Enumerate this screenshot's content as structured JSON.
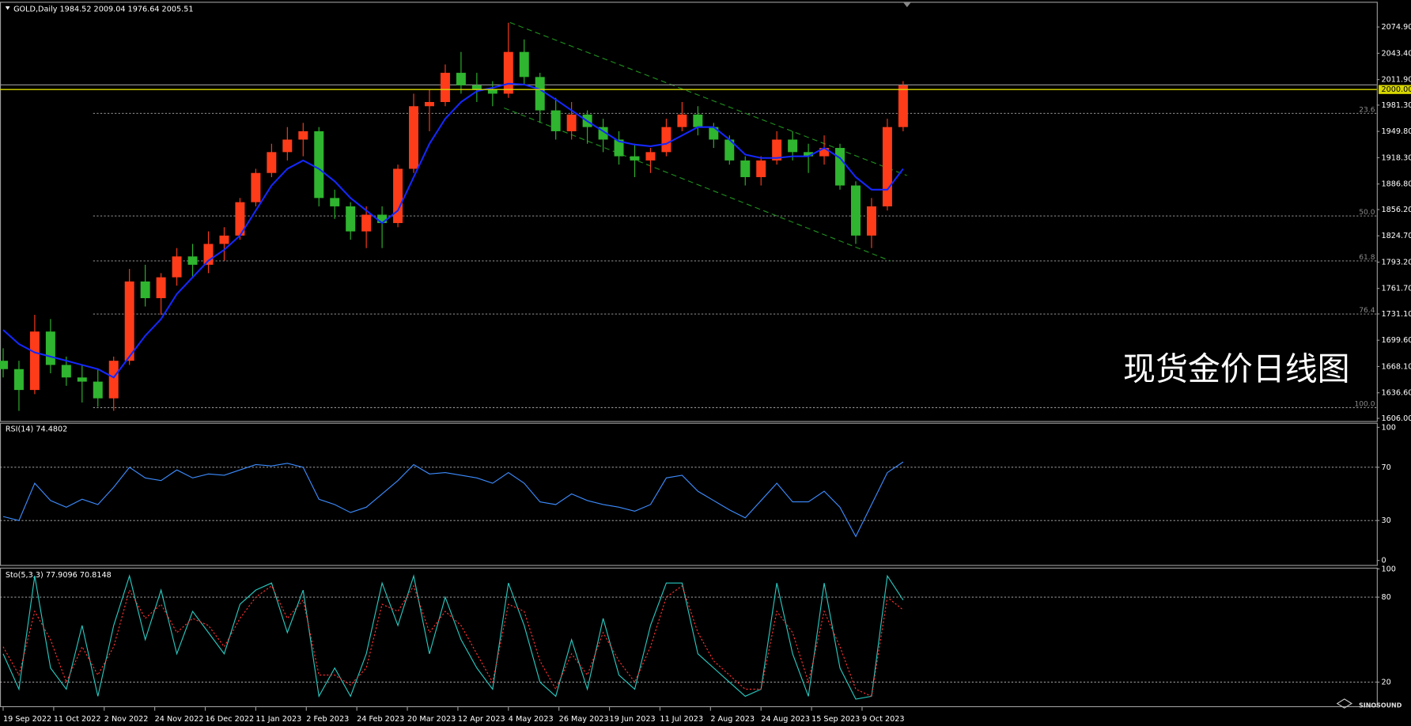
{
  "header": "GOLD,Daily  1984.52 2009.04 1976.64 2005.51",
  "watermark": "现货金价日线图",
  "logo": "SINOSOUND",
  "chart_data": [
    {
      "type": "candlestick",
      "x": [
        1,
        6,
        11,
        16,
        21,
        26,
        31,
        36,
        41,
        46,
        51,
        56,
        61,
        66,
        71,
        76,
        81,
        86,
        91,
        96,
        101,
        106,
        111,
        116,
        121,
        126,
        131,
        136,
        141,
        146,
        151,
        156,
        161,
        166,
        171,
        176,
        181,
        186,
        191,
        196,
        201,
        206,
        211,
        216,
        221,
        226,
        231,
        236,
        241,
        246,
        251,
        256,
        261,
        266,
        271,
        276,
        281,
        286
      ],
      "open": [
        1675,
        1665,
        1640,
        1710,
        1670,
        1655,
        1650,
        1630,
        1675,
        1770,
        1750,
        1775,
        1800,
        1790,
        1815,
        1825,
        1865,
        1900,
        1925,
        1940,
        1950,
        1870,
        1860,
        1830,
        1850,
        1840,
        1905,
        1980,
        1985,
        2020,
        2005,
        2000,
        1995,
        2045,
        2015,
        1975,
        1950,
        1970,
        1955,
        1940,
        1920,
        1915,
        1925,
        1955,
        1970,
        1955,
        1940,
        1915,
        1895,
        1915,
        1940,
        1925,
        1920,
        1930,
        1885,
        1825,
        1860,
        1955
      ],
      "high": [
        1690,
        1675,
        1730,
        1725,
        1680,
        1670,
        1665,
        1680,
        1785,
        1790,
        1780,
        1810,
        1815,
        1830,
        1835,
        1870,
        1905,
        1935,
        1955,
        1960,
        1955,
        1880,
        1865,
        1860,
        1860,
        1910,
        1995,
        2000,
        2030,
        2045,
        2020,
        2010,
        2080,
        2060,
        2020,
        1990,
        1985,
        1975,
        1965,
        1950,
        1935,
        1930,
        1965,
        1985,
        1980,
        1960,
        1945,
        1920,
        1920,
        1950,
        1950,
        1935,
        1945,
        1935,
        1890,
        1870,
        1965,
        2010
      ],
      "low": [
        1655,
        1615,
        1635,
        1660,
        1645,
        1625,
        1620,
        1615,
        1670,
        1740,
        1730,
        1765,
        1775,
        1780,
        1795,
        1820,
        1860,
        1895,
        1915,
        1920,
        1860,
        1845,
        1820,
        1810,
        1810,
        1835,
        1900,
        1950,
        1980,
        1995,
        1985,
        1980,
        1990,
        2005,
        1960,
        1940,
        1940,
        1935,
        1925,
        1910,
        1895,
        1900,
        1920,
        1950,
        1945,
        1930,
        1910,
        1885,
        1885,
        1910,
        1915,
        1900,
        1910,
        1880,
        1815,
        1810,
        1855,
        1950
      ],
      "close": [
        1665,
        1640,
        1710,
        1670,
        1655,
        1650,
        1630,
        1675,
        1770,
        1750,
        1775,
        1800,
        1790,
        1815,
        1825,
        1865,
        1900,
        1925,
        1940,
        1950,
        1870,
        1860,
        1830,
        1850,
        1840,
        1905,
        1980,
        1985,
        2020,
        2005,
        2000,
        1995,
        2045,
        2015,
        1975,
        1950,
        1970,
        1955,
        1940,
        1920,
        1915,
        1925,
        1955,
        1970,
        1955,
        1940,
        1915,
        1895,
        1915,
        1940,
        1925,
        1920,
        1930,
        1885,
        1825,
        1860,
        1955,
        2005
      ],
      "up_color": "#ff3c1a",
      "down_color": "#2fb52f",
      "ma": {
        "color": "#1428ff",
        "values": [
          1712,
          1695,
          1685,
          1680,
          1675,
          1670,
          1665,
          1655,
          1680,
          1705,
          1725,
          1755,
          1775,
          1795,
          1808,
          1825,
          1855,
          1885,
          1905,
          1915,
          1905,
          1890,
          1870,
          1855,
          1840,
          1855,
          1895,
          1935,
          1965,
          1985,
          1998,
          2002,
          2007,
          2006,
          2000,
          1988,
          1975,
          1962,
          1950,
          1938,
          1934,
          1932,
          1935,
          1945,
          1955,
          1955,
          1940,
          1922,
          1918,
          1918,
          1920,
          1920,
          1930,
          1918,
          1895,
          1880,
          1880,
          1905
        ]
      },
      "levels": [
        {
          "value": 2000,
          "label": "2000.00",
          "color": "#d7d700"
        }
      ],
      "price_line": 2005.51,
      "fib_levels": [
        {
          "label": "23.6",
          "value": 1971.4
        },
        {
          "label": "50.0",
          "value": 1848.5
        },
        {
          "label": "61.8",
          "value": 1794.6
        },
        {
          "label": "76.4",
          "value": 1731.0
        },
        {
          "label": "100.0",
          "value": 1618.9
        }
      ],
      "channel": {
        "color": "#1f8f1f",
        "lines": [
          {
            "x": [
              161.5,
              287.2
            ],
            "y": [
              2080.3,
              1897.0
            ]
          },
          {
            "x": [
              159.6,
              282.0
            ],
            "y": [
              1977.9,
              1794.6
            ]
          }
        ]
      },
      "xlim": [
        0,
        436
      ],
      "ylim": [
        1602.8,
        2104.0
      ],
      "yticks": [
        {
          "value": 2074.9,
          "label": "2074.90"
        },
        {
          "value": 2043.4,
          "label": "2043.40"
        },
        {
          "value": 2011.9,
          "label": "2011.90"
        },
        {
          "value": 1981.3,
          "label": "1981.30"
        },
        {
          "value": 1949.8,
          "label": "1949.80"
        },
        {
          "value": 1918.3,
          "label": "1918.30"
        },
        {
          "value": 1886.8,
          "label": "1886.80"
        },
        {
          "value": 1856.2,
          "label": "1856.20"
        },
        {
          "value": 1824.7,
          "label": "1824.70"
        },
        {
          "value": 1793.2,
          "label": "1793.20"
        },
        {
          "value": 1761.7,
          "label": "1761.70"
        },
        {
          "value": 1731.1,
          "label": "1731.10"
        },
        {
          "value": 1699.6,
          "label": "1699.60"
        },
        {
          "value": 1668.1,
          "label": "1668.10"
        },
        {
          "value": 1636.6,
          "label": "1636.60"
        },
        {
          "value": 1606,
          "label": "1606.00"
        }
      ],
      "xticks": [
        {
          "value": 1,
          "label": "19 Sep 2022"
        },
        {
          "value": 17,
          "label": "11 Oct 2022"
        },
        {
          "value": 33,
          "label": "2 Nov 2022"
        },
        {
          "value": 49,
          "label": "24 Nov 2022"
        },
        {
          "value": 65,
          "label": "16 Dec 2022"
        },
        {
          "value": 81,
          "label": "11 Jan 2023"
        },
        {
          "value": 97,
          "label": "2 Feb 2023"
        },
        {
          "value": 113,
          "label": "24 Feb 2023"
        },
        {
          "value": 129,
          "label": "20 Mar 2023"
        },
        {
          "value": 145,
          "label": "12 Apr 2023"
        },
        {
          "value": 161,
          "label": "4 May 2023"
        },
        {
          "value": 177,
          "label": "26 May 2023"
        },
        {
          "value": 193,
          "label": "19 Jun 2023"
        },
        {
          "value": 209,
          "label": "11 Jul 2023"
        },
        {
          "value": 225,
          "label": "2 Aug 2023"
        },
        {
          "value": 241,
          "label": "24 Aug 2023"
        },
        {
          "value": 257,
          "label": "15 Sep 2023"
        },
        {
          "value": 273,
          "label": "9 Oct 2023"
        }
      ]
    },
    {
      "type": "line",
      "title": "RSI(14) 74.4802",
      "series": [
        {
          "color": "#3c8cff",
          "values": [
            33,
            30,
            58,
            45,
            40,
            46,
            42,
            55,
            70,
            62,
            60,
            68,
            62,
            65,
            64,
            68,
            72,
            71,
            73,
            70,
            46,
            42,
            36,
            40,
            50,
            60,
            72,
            65,
            66,
            64,
            62,
            58,
            66,
            58,
            44,
            42,
            50,
            45,
            42,
            40,
            37,
            42,
            62,
            64,
            52,
            45,
            38,
            32,
            45,
            58,
            44,
            44,
            52,
            40,
            18,
            42,
            66,
            74
          ]
        }
      ],
      "ylim": [
        -3.4,
        103.4
      ],
      "yticks": [
        0,
        30,
        70,
        100
      ],
      "levels": [
        30,
        70
      ]
    },
    {
      "type": "line",
      "title": "Sto(5,3,3) 77.9096 70.8148",
      "series": [
        {
          "color": "#28c8c0",
          "values": [
            40,
            15,
            95,
            30,
            15,
            60,
            10,
            60,
            95,
            50,
            85,
            40,
            70,
            55,
            40,
            75,
            85,
            90,
            55,
            85,
            10,
            30,
            10,
            40,
            90,
            60,
            95,
            40,
            80,
            50,
            30,
            15,
            90,
            60,
            20,
            10,
            50,
            15,
            65,
            25,
            15,
            60,
            90,
            90,
            40,
            30,
            20,
            10,
            15,
            90,
            40,
            10,
            90,
            30,
            8,
            10,
            95,
            78
          ]
        },
        {
          "color": "#ff3030",
          "dash": true,
          "values": [
            45,
            25,
            70,
            50,
            20,
            45,
            25,
            45,
            85,
            65,
            75,
            55,
            65,
            60,
            45,
            65,
            80,
            88,
            65,
            78,
            25,
            25,
            18,
            30,
            75,
            70,
            88,
            55,
            70,
            60,
            40,
            20,
            75,
            70,
            35,
            15,
            40,
            25,
            55,
            35,
            20,
            45,
            80,
            88,
            55,
            35,
            25,
            15,
            15,
            70,
            55,
            20,
            70,
            45,
            15,
            10,
            80,
            71
          ]
        }
      ],
      "ylim": [
        3,
        100.2
      ],
      "yticks": [
        20,
        80,
        100
      ],
      "levels": [
        20,
        80
      ]
    }
  ]
}
